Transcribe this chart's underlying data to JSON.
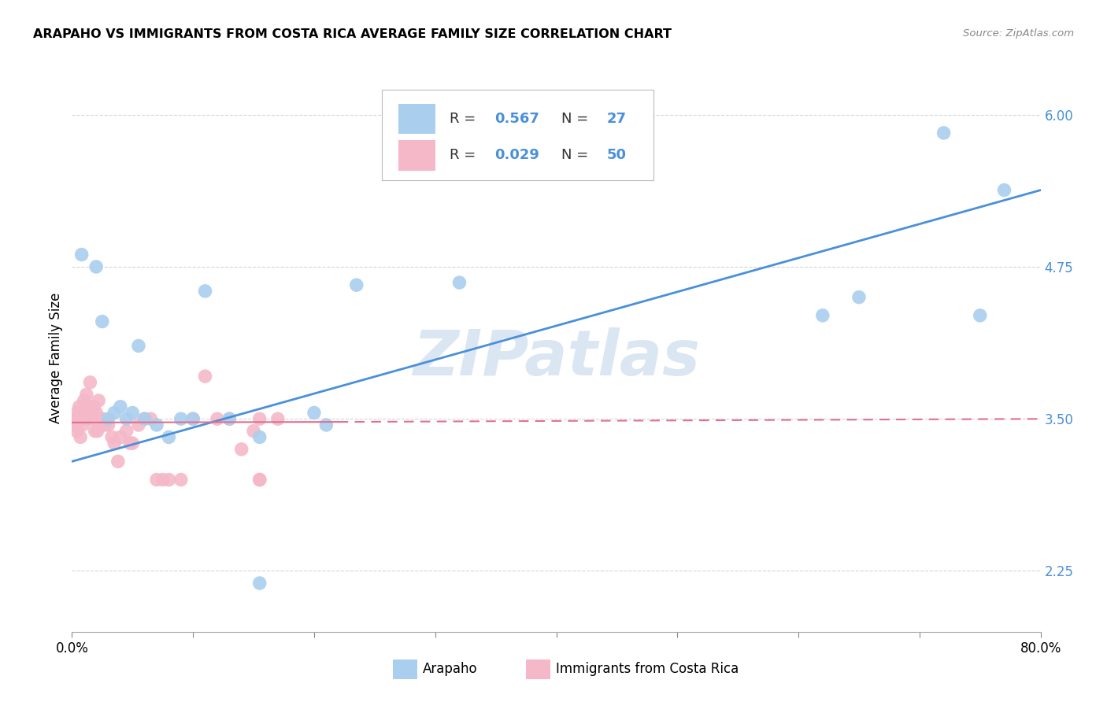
{
  "title": "ARAPAHO VS IMMIGRANTS FROM COSTA RICA AVERAGE FAMILY SIZE CORRELATION CHART",
  "source": "Source: ZipAtlas.com",
  "ylabel": "Average Family Size",
  "xlim": [
    0.0,
    0.8
  ],
  "ylim": [
    1.75,
    6.25
  ],
  "yticks": [
    2.25,
    3.5,
    4.75,
    6.0
  ],
  "xticks": [
    0.0,
    0.1,
    0.2,
    0.3,
    0.4,
    0.5,
    0.6,
    0.7,
    0.8
  ],
  "legend_R1": "0.567",
  "legend_N1": "27",
  "legend_R2": "0.029",
  "legend_N2": "50",
  "blue_scatter_color": "#aacfee",
  "pink_scatter_color": "#f4b8c8",
  "blue_line_color": "#4a90d9",
  "pink_line_color": "#e07090",
  "watermark": "ZIPatlas",
  "arapaho_x": [
    0.008,
    0.02,
    0.025,
    0.03,
    0.035,
    0.04,
    0.045,
    0.05,
    0.055,
    0.06,
    0.07,
    0.08,
    0.09,
    0.1,
    0.11,
    0.13,
    0.155,
    0.2,
    0.21,
    0.235,
    0.155,
    0.62,
    0.65,
    0.72,
    0.75,
    0.77,
    0.32
  ],
  "arapaho_y": [
    4.85,
    4.75,
    4.3,
    3.5,
    3.55,
    3.6,
    3.5,
    3.55,
    4.1,
    3.5,
    3.45,
    3.35,
    3.5,
    3.5,
    4.55,
    3.5,
    2.15,
    3.55,
    3.45,
    4.6,
    3.35,
    4.35,
    4.5,
    5.85,
    4.35,
    5.38,
    4.62
  ],
  "costarica_x": [
    0.003,
    0.003,
    0.004,
    0.004,
    0.005,
    0.006,
    0.007,
    0.007,
    0.008,
    0.009,
    0.01,
    0.011,
    0.012,
    0.013,
    0.014,
    0.015,
    0.016,
    0.017,
    0.018,
    0.019,
    0.02,
    0.021,
    0.022,
    0.025,
    0.027,
    0.03,
    0.033,
    0.035,
    0.038,
    0.04,
    0.045,
    0.048,
    0.05,
    0.055,
    0.06,
    0.065,
    0.07,
    0.075,
    0.08,
    0.09,
    0.1,
    0.11,
    0.12,
    0.13,
    0.14,
    0.15,
    0.155,
    0.155,
    0.155,
    0.17
  ],
  "costarica_y": [
    3.5,
    3.45,
    3.55,
    3.4,
    3.5,
    3.6,
    3.5,
    3.35,
    3.55,
    3.45,
    3.65,
    3.5,
    3.7,
    3.5,
    3.6,
    3.8,
    3.55,
    3.5,
    3.6,
    3.4,
    3.55,
    3.4,
    3.65,
    3.5,
    3.45,
    3.45,
    3.35,
    3.3,
    3.15,
    3.35,
    3.4,
    3.3,
    3.3,
    3.45,
    3.5,
    3.5,
    3.0,
    3.0,
    3.0,
    3.0,
    3.5,
    3.85,
    3.5,
    3.5,
    3.25,
    3.4,
    3.0,
    3.0,
    3.5,
    3.5
  ],
  "blue_line_x0": 0.0,
  "blue_line_y0": 3.15,
  "blue_line_x1": 0.8,
  "blue_line_y1": 5.38,
  "pink_line_x0": 0.0,
  "pink_line_y0": 3.47,
  "pink_line_x1": 0.8,
  "pink_line_y1": 3.5
}
